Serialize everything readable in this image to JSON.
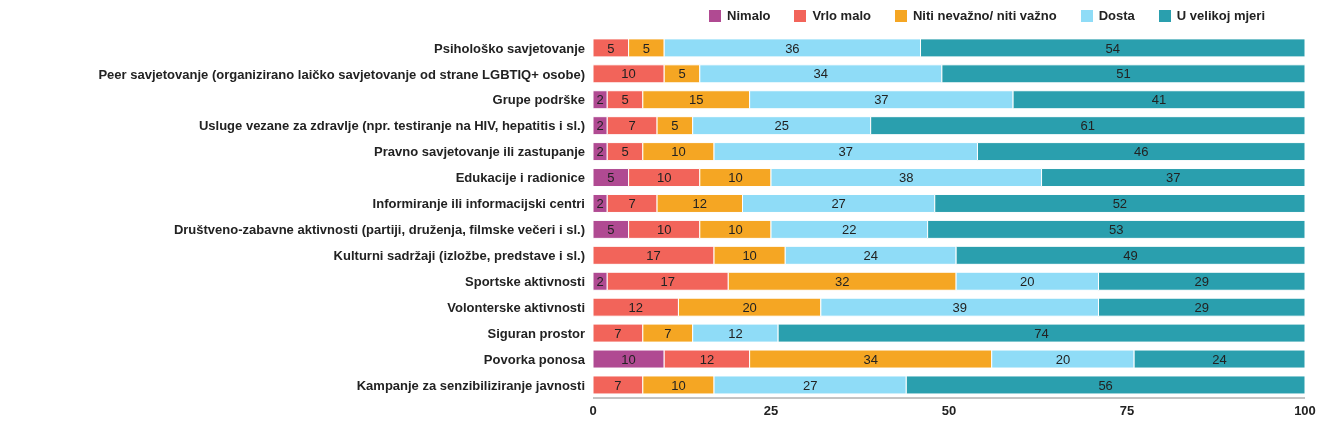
{
  "chart_data": {
    "type": "bar",
    "orientation": "horizontal",
    "stacked": true,
    "data_labels": true,
    "legend": "top right",
    "grid": false,
    "categories": [
      "Psihološko savjetovanje",
      "Peer savjetovanje (organizirano laičko savjetovanje od strane LGBTIQ+ osobe)",
      "Grupe podrške",
      "Usluge vezane za zdravlje (npr. testiranje na HIV, hepatitis i sl.)",
      "Pravno savjetovanje ili zastupanje",
      "Edukacije i radionice",
      "Informiranje ili informacijski centri",
      "Društveno-zabavne aktivnosti (partiji, druženja, filmske večeri i sl.)",
      "Kulturni sadržaji (izložbe, predstave i sl.)",
      "Sportske aktivnosti",
      "Volonterske aktivnosti",
      "Siguran prostor",
      "Povorka ponosa",
      "Kampanje za senzibiliziranje javnosti"
    ],
    "series": [
      {
        "name": "Nimalo",
        "color": "#b04a92",
        "values": [
          null,
          null,
          2,
          2,
          2,
          5,
          2,
          5,
          null,
          2,
          null,
          null,
          10,
          null
        ]
      },
      {
        "name": "Vrlo malo",
        "color": "#f2645a",
        "values": [
          5,
          10,
          5,
          7,
          5,
          10,
          7,
          10,
          17,
          17,
          12,
          7,
          12,
          7
        ]
      },
      {
        "name": "Niti nevažno/ niti važno",
        "color": "#f5a623",
        "values": [
          5,
          5,
          15,
          5,
          10,
          10,
          12,
          10,
          10,
          32,
          20,
          7,
          34,
          10
        ]
      },
      {
        "name": "Dosta",
        "color": "#8fdcf7",
        "values": [
          36,
          34,
          37,
          25,
          37,
          38,
          27,
          22,
          24,
          20,
          39,
          12,
          20,
          27
        ]
      },
      {
        "name": "U velikoj mjeri",
        "color": "#2a9fae",
        "values": [
          54,
          51,
          41,
          61,
          46,
          37,
          52,
          53,
          49,
          29,
          29,
          74,
          24,
          56
        ]
      }
    ],
    "xlim": [
      0,
      100
    ],
    "xticks": [
      0,
      25,
      50,
      75,
      100
    ]
  }
}
